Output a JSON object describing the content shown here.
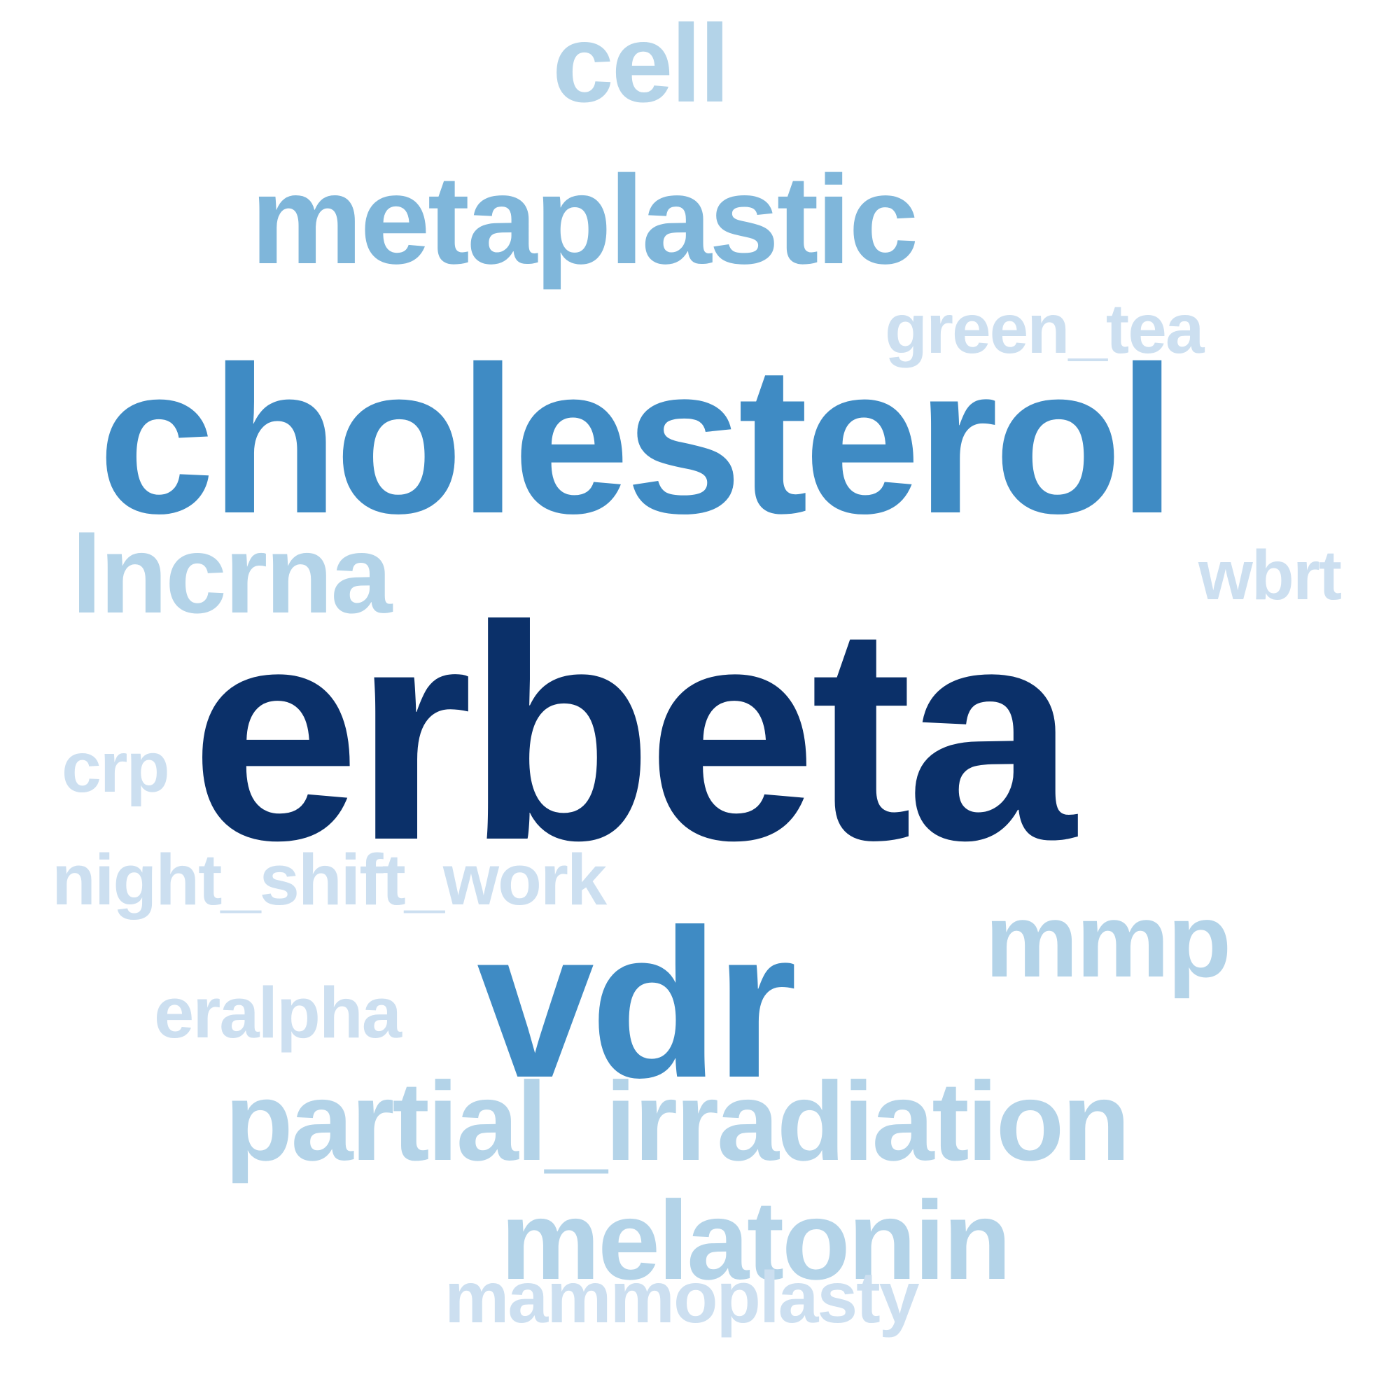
{
  "word_cloud": {
    "colors": {
      "tier_1": "#0b3069",
      "tier_2": "#3f8bc4",
      "tier_3": "#7fb6da",
      "tier_4": "#b3d3e8",
      "tier_5": "#ccdff0"
    },
    "words": {
      "erbeta": "erbeta",
      "cholesterol": "cholesterol",
      "vdr": "vdr",
      "metaplastic": "metaplastic",
      "cell": "cell",
      "lncrna": "lncrna",
      "mmp": "mmp",
      "partial_irradiation": "partial_irradiation",
      "melatonin": "melatonin",
      "green_tea": "green_tea",
      "wbrt": "wbrt",
      "crp": "crp",
      "night_shift_work": "night_shift_work",
      "eralpha": "eralpha",
      "mammoplasty": "mammoplasty"
    }
  }
}
